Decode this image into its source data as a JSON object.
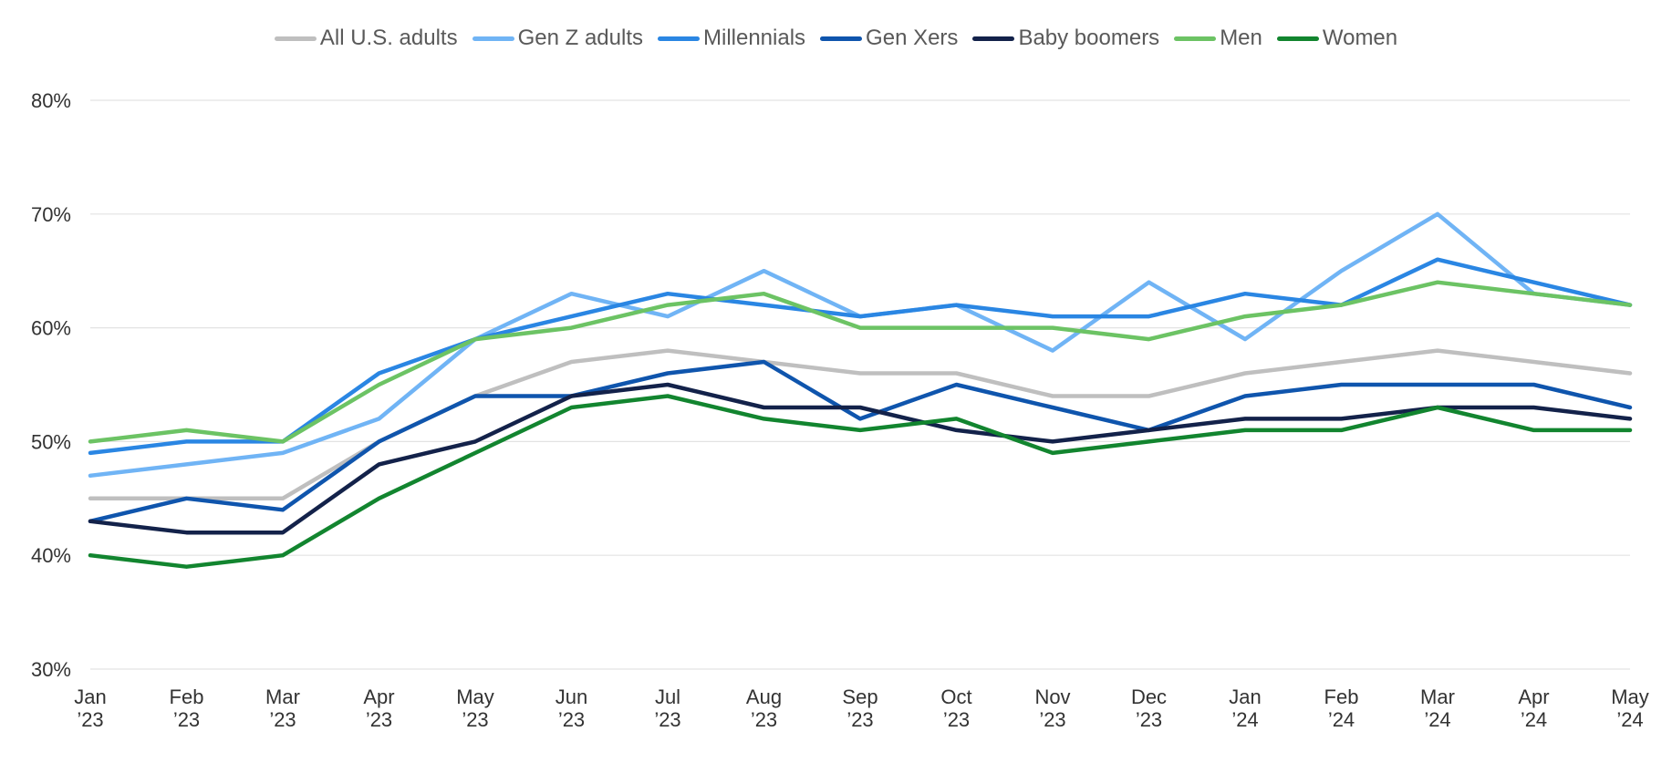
{
  "chart_data": {
    "type": "line",
    "title": "",
    "xlabel": "",
    "ylabel": "",
    "ylim": [
      30,
      80
    ],
    "yticks": [
      "80%",
      "70%",
      "60%",
      "50%",
      "40%",
      "30%"
    ],
    "yticks_values": [
      80,
      70,
      60,
      50,
      40,
      30
    ],
    "categories": [
      [
        "Jan",
        "’23"
      ],
      [
        "Feb",
        "’23"
      ],
      [
        "Mar",
        "’23"
      ],
      [
        "Apr",
        "’23"
      ],
      [
        "May",
        "’23"
      ],
      [
        "Jun",
        "’23"
      ],
      [
        "Jul",
        "’23"
      ],
      [
        "Aug",
        "’23"
      ],
      [
        "Sep",
        "’23"
      ],
      [
        "Oct",
        "’23"
      ],
      [
        "Nov",
        "’23"
      ],
      [
        "Dec",
        "’23"
      ],
      [
        "Jan",
        "’24"
      ],
      [
        "Feb",
        "’24"
      ],
      [
        "Mar",
        "’24"
      ],
      [
        "Apr",
        "’24"
      ],
      [
        "May",
        "’24"
      ]
    ],
    "grid": true,
    "legend_position": "top-center",
    "series": [
      {
        "name": "All U.S. adults",
        "color": "#bfbfbf",
        "values": [
          45,
          45,
          45,
          50,
          54,
          57,
          58,
          57,
          56,
          56,
          54,
          54,
          56,
          57,
          58,
          57,
          56
        ]
      },
      {
        "name": "Gen Z adults",
        "color": "#70b4f5",
        "values": [
          47,
          48,
          49,
          52,
          59,
          63,
          61,
          65,
          61,
          62,
          58,
          64,
          59,
          65,
          70,
          63,
          62
        ]
      },
      {
        "name": "Millennials",
        "color": "#2a86e3",
        "values": [
          49,
          50,
          50,
          56,
          59,
          61,
          63,
          62,
          61,
          62,
          61,
          61,
          63,
          62,
          66,
          64,
          62
        ]
      },
      {
        "name": "Gen Xers",
        "color": "#0f55ad",
        "values": [
          43,
          45,
          44,
          50,
          54,
          54,
          56,
          57,
          52,
          55,
          53,
          51,
          54,
          55,
          55,
          55,
          53
        ]
      },
      {
        "name": "Baby boomers",
        "color": "#13224a",
        "values": [
          43,
          42,
          42,
          48,
          50,
          54,
          55,
          53,
          53,
          51,
          50,
          51,
          52,
          52,
          53,
          53,
          52
        ]
      },
      {
        "name": "Men",
        "color": "#6cc364",
        "values": [
          50,
          51,
          50,
          55,
          59,
          60,
          62,
          63,
          60,
          60,
          60,
          59,
          61,
          62,
          64,
          63,
          62
        ]
      },
      {
        "name": "Women",
        "color": "#12852f",
        "values": [
          40,
          39,
          40,
          45,
          49,
          53,
          54,
          52,
          51,
          52,
          49,
          50,
          51,
          51,
          53,
          51,
          51
        ]
      }
    ]
  }
}
